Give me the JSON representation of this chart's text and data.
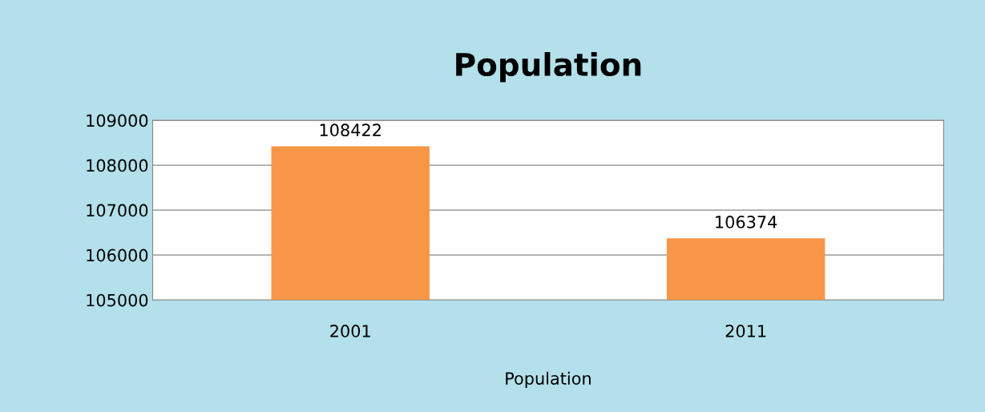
{
  "chart_data": {
    "type": "bar",
    "title": "Population",
    "xlabel": "Population",
    "categories": [
      "2001",
      "2011"
    ],
    "values": [
      108422,
      106374
    ],
    "color": "#f79646",
    "ylim": [
      105000,
      109000
    ],
    "yticks": [
      105000,
      106000,
      107000,
      108000,
      109000
    ],
    "grid": "y",
    "data_labels": true,
    "legend": false
  }
}
